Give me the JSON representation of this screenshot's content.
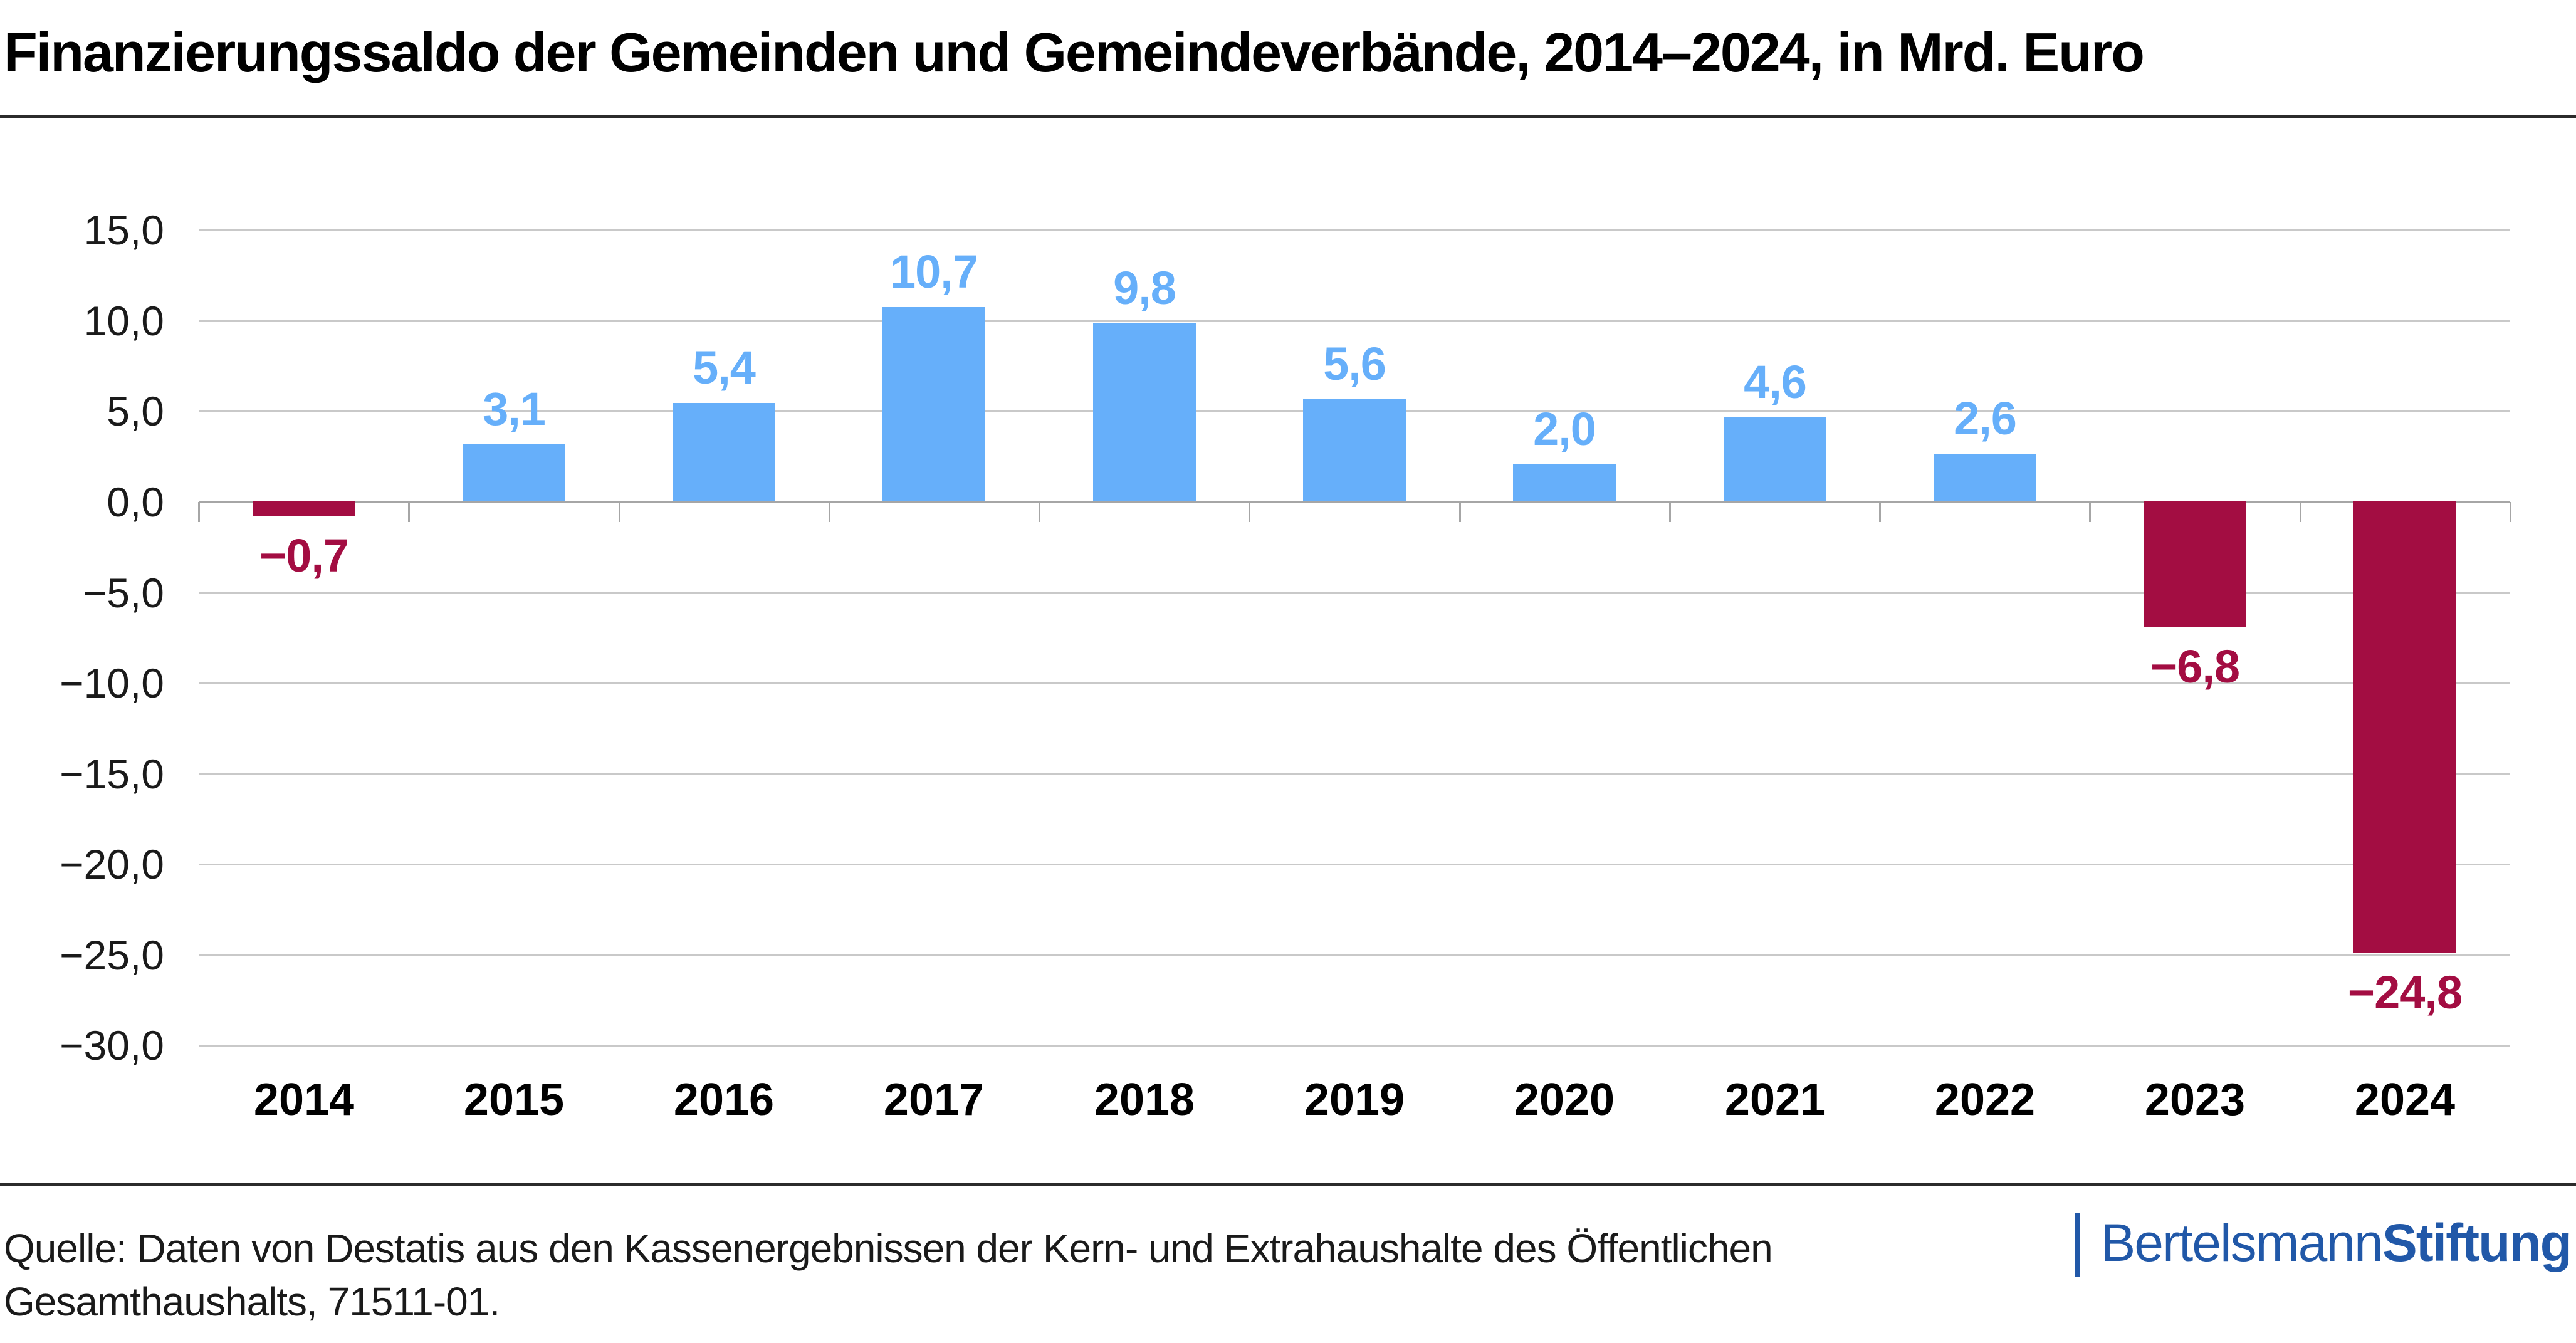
{
  "title": "Finanzierungssaldo der Gemeinden und Gemeindeverbände, 2014–2024, in Mrd. Euro",
  "chart_data": {
    "type": "bar",
    "title": "Finanzierungssaldo der Gemeinden und Gemeindeverbände, 2014–2024, in Mrd. Euro",
    "xlabel": "",
    "ylabel": "Mrd. Euro",
    "categories": [
      "2014",
      "2015",
      "2016",
      "2017",
      "2018",
      "2019",
      "2020",
      "2021",
      "2022",
      "2023",
      "2024"
    ],
    "values": [
      -0.7,
      3.1,
      5.4,
      10.7,
      9.8,
      5.6,
      2.0,
      4.6,
      2.6,
      -6.8,
      -24.8
    ],
    "value_labels": [
      "−0,7",
      "3,1",
      "5,4",
      "10,7",
      "9,8",
      "5,6",
      "2,0",
      "4,6",
      "2,6",
      "−6,8",
      "−24,8"
    ],
    "ylim": [
      -30,
      15
    ],
    "yticks": [
      15,
      10,
      5,
      0,
      -5,
      -10,
      -15,
      -20,
      -25,
      -30
    ],
    "ytick_labels": [
      "15,0",
      "10,0",
      "5,0",
      "0,0",
      "−5,0",
      "−10,0",
      "−15,0",
      "−20,0",
      "−25,0",
      "−30,0"
    ],
    "grid": true,
    "legend": "none",
    "colors": {
      "positive_bar": "#66AFFA",
      "negative_bar": "#A30D42",
      "gridline": "#C9C9C9",
      "zero_line": "#A6A6A6"
    }
  },
  "source": {
    "line1": "Quelle: Daten von Destatis aus den Kassenergebnissen der Kern- und Extrahaushalte des Öffentlichen",
    "line2": "Gesamthaushalts, 71511-01."
  },
  "logo": {
    "part1": "Bertelsmann",
    "part2": "Stiftung",
    "color": "#2158A8"
  }
}
